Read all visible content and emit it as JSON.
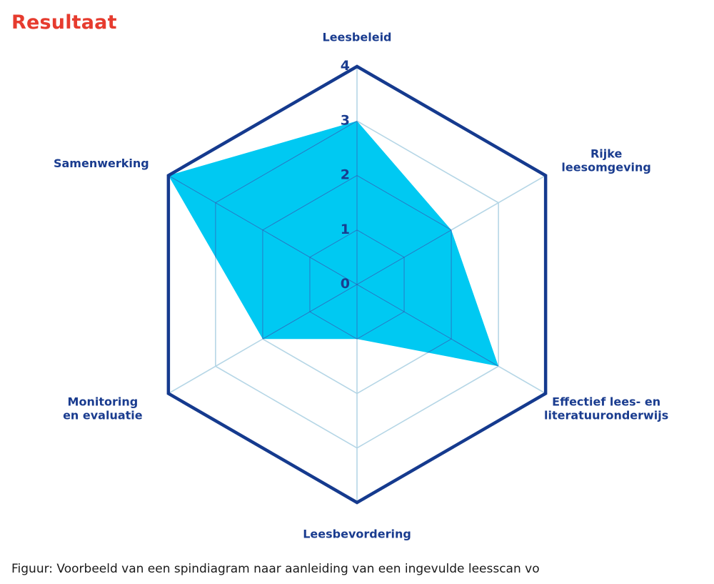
{
  "title": "Resultaat",
  "caption": "Figuur: Voorbeeld van een spindiagram naar aanleiding van een ingevulde leesscan vo",
  "colors": {
    "title": "#e63b2e",
    "label": "#1a3c8f",
    "outer_border": "#153a8e",
    "grid": "#b5d6e6",
    "inner_grid": "#3a55b0",
    "fill": "#00c9f2"
  },
  "chart_data": {
    "type": "radar",
    "axes": [
      "Leesbeleid",
      "Rijke leesomgeving",
      "Effectief lees- en literatuuronderwijs",
      "Leesbevordering",
      "Monitoring en evaluatie",
      "Samenwerking"
    ],
    "axis_label_lines": [
      [
        "Leesbeleid"
      ],
      [
        "Rijke",
        "leesomgeving"
      ],
      [
        "Effectief lees- en",
        "literatuuronderwijs"
      ],
      [
        "Leesbevordering"
      ],
      [
        "Monitoring",
        "en evaluatie"
      ],
      [
        "Samenwerking"
      ]
    ],
    "values": [
      3,
      2,
      3,
      1,
      2,
      4
    ],
    "range": [
      0,
      4
    ],
    "ticks": [
      "0",
      "1",
      "2",
      "3",
      "4"
    ]
  }
}
